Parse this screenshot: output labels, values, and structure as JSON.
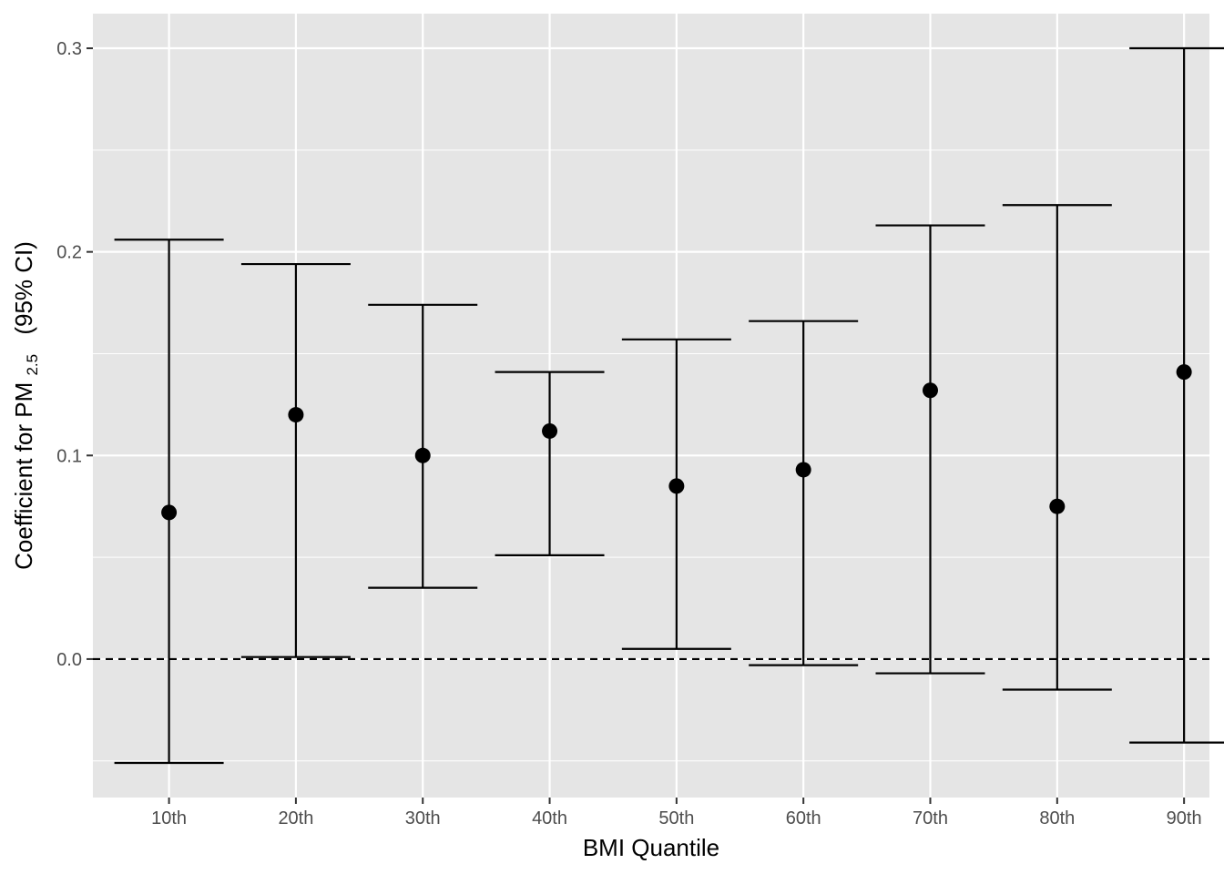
{
  "chart_data": {
    "type": "scatter",
    "subtype": "point-with-error-bars",
    "title": "",
    "xlabel": "BMI Quantile",
    "ylabel": {
      "prefix": "Coefficient for PM",
      "subscript": "2.5",
      "suffix": "(95% CI)"
    },
    "categories": [
      "10th",
      "20th",
      "30th",
      "40th",
      "50th",
      "60th",
      "70th",
      "80th",
      "90th"
    ],
    "estimates": [
      0.072,
      0.12,
      0.1,
      0.112,
      0.085,
      0.093,
      0.132,
      0.075,
      0.141
    ],
    "ci_lower": [
      -0.051,
      0.001,
      0.035,
      0.051,
      0.005,
      -0.003,
      -0.007,
      -0.015,
      -0.041
    ],
    "ci_upper": [
      0.206,
      0.194,
      0.174,
      0.141,
      0.157,
      0.166,
      0.213,
      0.223,
      0.3
    ],
    "ylim": [
      -0.068,
      0.317
    ],
    "yticks": [
      0.0,
      0.1,
      0.2,
      0.3
    ],
    "ytick_labels": [
      "0.0",
      "0.1",
      "0.2",
      "0.3"
    ],
    "reference_line": {
      "y": 0.0,
      "style": "dashed"
    },
    "grid": true,
    "legend": "none",
    "colors": {
      "panel_background": "#e5e5e5",
      "grid": "#ffffff",
      "marks": "#000000",
      "tick_text": "#4d4d4d",
      "tick_mark": "#333333"
    }
  }
}
